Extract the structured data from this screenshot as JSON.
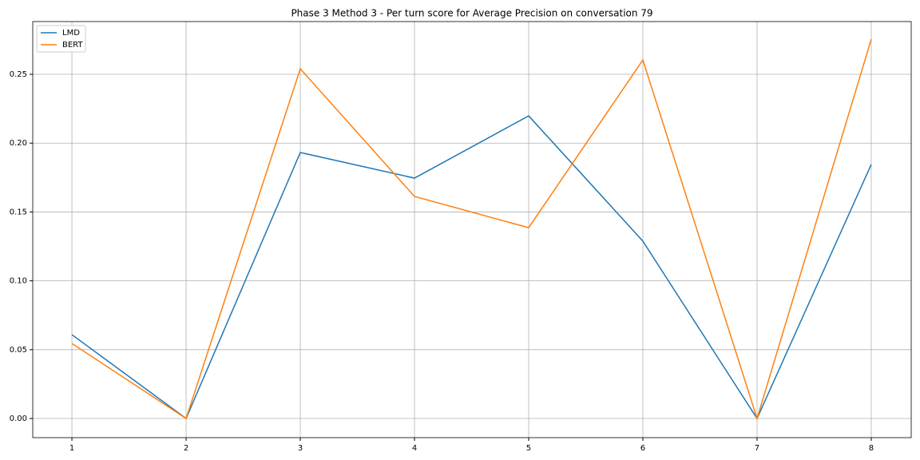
{
  "chart_data": {
    "type": "line",
    "title": "Phase 3 Method 3 - Per turn score for Average Precision on conversation 79",
    "x": [
      1,
      2,
      3,
      4,
      5,
      6,
      7,
      8
    ],
    "series": [
      {
        "name": "LMD",
        "color": "#1f77b4",
        "values": [
          0.0609,
          0,
          0.1932,
          0.1746,
          0.2198,
          0.1288,
          0,
          0.1845
        ]
      },
      {
        "name": "BERT",
        "color": "#ff7f0e",
        "values": [
          0.0545,
          0,
          0.254,
          0.1613,
          0.1386,
          0.2604,
          0,
          0.2755
        ]
      }
    ],
    "xlim": [
      0.657,
      8.35
    ],
    "ylim": [
      -0.0139,
      0.2883
    ],
    "xticks": [
      1,
      2,
      3,
      4,
      5,
      6,
      7,
      8
    ],
    "yticks": [
      {
        "value": 0,
        "label": "0.00"
      },
      0.05,
      {
        "value": 0.1,
        "label": "0.10"
      },
      0.15,
      {
        "value": 0.2,
        "label": "0.20"
      },
      0.25
    ],
    "grid": true,
    "legend": "upper left"
  }
}
